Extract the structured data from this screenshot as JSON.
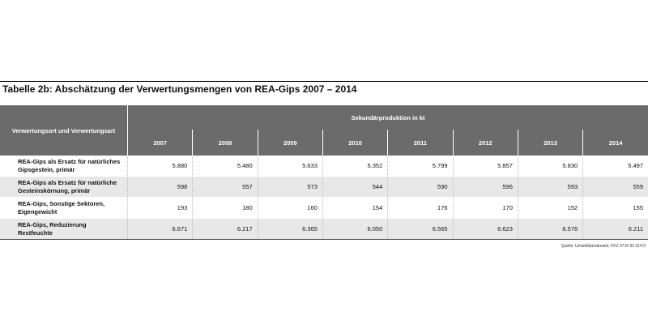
{
  "title": "Tabelle 2b: Abschätzung der Verwertungsmengen von REA-Gips 2007 – 2014",
  "table": {
    "row_header": "Verwertungsort und Verwertungsart",
    "group_header": "Sekundärproduktion in kt",
    "years": [
      "2007",
      "2008",
      "2009",
      "2010",
      "2011",
      "2012",
      "2013",
      "2014"
    ],
    "rows": [
      {
        "label": "REA-Gips als Ersatz für natürliches Gipsgestein, primär",
        "values": [
          "5.880",
          "5.480",
          "5.633",
          "5.352",
          "5.799",
          "5.857",
          "5.830",
          "5.497"
        ]
      },
      {
        "label": "REA-Gips als Ersatz für natürliche Gesteinskörnung, primär",
        "values": [
          "598",
          "557",
          "573",
          "544",
          "590",
          "596",
          "593",
          "559"
        ]
      },
      {
        "label": "REA-Gips, Sonstige Sektoren, Eigengewicht",
        "values": [
          "193",
          "180",
          "160",
          "154",
          "176",
          "170",
          "152",
          "155"
        ]
      },
      {
        "label": "REA-Gips, Reduzierung Restfeuchte",
        "values": [
          "6.671",
          "6.217",
          "6.365",
          "6.050",
          "6.565",
          "6.623",
          "6.576",
          "6.211"
        ]
      }
    ]
  },
  "source": "Quelle: Umweltbundesamt, FKZ 3716 93 314 0"
}
